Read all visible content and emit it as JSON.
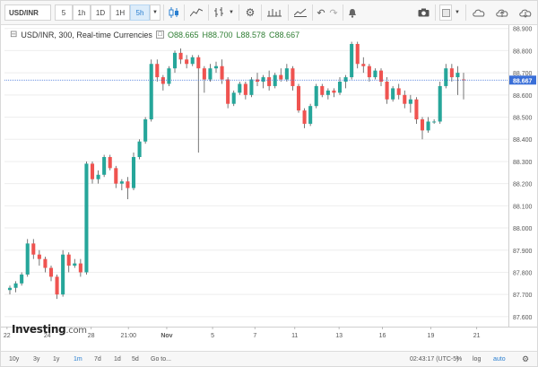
{
  "toolbar": {
    "symbol": "USD/INR",
    "intervals": [
      "5",
      "1h",
      "1D",
      "1H",
      "5h"
    ],
    "active_interval": "5h",
    "icons": [
      "dropdown-icon",
      "candles-icon",
      "line-style-icon",
      "bars-icon",
      "dropdown-icon",
      "settings-icon",
      "scale-icon",
      "compare-icon",
      "undo-icon",
      "redo-icon",
      "alert-icon",
      "camera-icon",
      "color-swatch-icon",
      "dropdown-icon",
      "cloud-icon",
      "cloud-save-icon",
      "cloud-load-icon"
    ]
  },
  "legend": {
    "title": "USD/INR, 300, Real-time Currencies",
    "open": "O88.665",
    "high": "H88.700",
    "low": "L88.578",
    "close": "C88.667"
  },
  "watermark": {
    "brand": "Investing",
    "suffix": ".com"
  },
  "chart_data": {
    "type": "candlestick",
    "current_price": "88.667",
    "y_ticks": [
      "88.900",
      "88.800",
      "88.700",
      "88.600",
      "88.500",
      "88.400",
      "88.300",
      "88.200",
      "88.100",
      "88.000",
      "87.900",
      "87.800",
      "87.700",
      "87.600"
    ],
    "x_ticks": [
      "22",
      "24",
      "28",
      "21:00",
      "Nov",
      "5",
      "7",
      "11",
      "13",
      "16",
      "19",
      "21"
    ],
    "ylim": [
      87.555,
      88.915
    ],
    "colors": {
      "up": "#26a69a",
      "down": "#ef5350",
      "wick": "#555555",
      "price_line": "#3a6fd8"
    },
    "candles": [
      [
        87.72,
        87.74,
        87.7,
        87.73
      ],
      [
        87.73,
        87.76,
        87.71,
        87.75
      ],
      [
        87.75,
        87.8,
        87.74,
        87.79
      ],
      [
        87.79,
        87.95,
        87.78,
        87.93
      ],
      [
        87.93,
        87.95,
        87.86,
        87.88
      ],
      [
        87.88,
        87.9,
        87.83,
        87.86
      ],
      [
        87.86,
        87.87,
        87.8,
        87.82
      ],
      [
        87.82,
        87.83,
        87.76,
        87.78
      ],
      [
        87.78,
        87.79,
        87.68,
        87.7
      ],
      [
        87.7,
        87.9,
        87.69,
        87.88
      ],
      [
        87.88,
        87.89,
        87.8,
        87.83
      ],
      [
        87.83,
        87.86,
        87.82,
        87.84
      ],
      [
        87.84,
        87.86,
        87.78,
        87.8
      ],
      [
        87.8,
        88.3,
        87.79,
        88.29
      ],
      [
        88.29,
        88.3,
        88.2,
        88.22
      ],
      [
        88.22,
        88.26,
        88.2,
        88.24
      ],
      [
        88.24,
        88.33,
        88.23,
        88.32
      ],
      [
        88.32,
        88.33,
        88.26,
        88.27
      ],
      [
        88.27,
        88.28,
        88.18,
        88.2
      ],
      [
        88.2,
        88.22,
        88.17,
        88.21
      ],
      [
        88.21,
        88.23,
        88.13,
        88.18
      ],
      [
        88.18,
        88.34,
        88.17,
        88.32
      ],
      [
        88.32,
        88.4,
        88.31,
        88.39
      ],
      [
        88.39,
        88.5,
        88.38,
        88.49
      ],
      [
        88.49,
        88.76,
        88.48,
        88.74
      ],
      [
        88.74,
        88.76,
        88.66,
        88.68
      ],
      [
        88.68,
        88.69,
        88.62,
        88.65
      ],
      [
        88.65,
        88.73,
        88.64,
        88.72
      ],
      [
        88.72,
        88.8,
        88.7,
        88.79
      ],
      [
        88.79,
        88.81,
        88.74,
        88.76
      ],
      [
        88.76,
        88.78,
        88.72,
        88.74
      ],
      [
        88.74,
        88.78,
        88.73,
        88.77
      ],
      [
        88.77,
        88.78,
        88.34,
        88.72
      ],
      [
        88.72,
        88.73,
        88.61,
        88.67
      ],
      [
        88.67,
        88.74,
        88.66,
        88.72
      ],
      [
        88.72,
        88.75,
        88.7,
        88.73
      ],
      [
        88.73,
        88.76,
        88.65,
        88.67
      ],
      [
        88.67,
        88.68,
        88.54,
        88.56
      ],
      [
        88.56,
        88.62,
        88.55,
        88.61
      ],
      [
        88.61,
        88.66,
        88.6,
        88.65
      ],
      [
        88.65,
        88.66,
        88.58,
        88.6
      ],
      [
        88.6,
        88.68,
        88.59,
        88.67
      ],
      [
        88.67,
        88.7,
        88.64,
        88.66
      ],
      [
        88.66,
        88.69,
        88.63,
        88.68
      ],
      [
        88.68,
        88.71,
        88.62,
        88.64
      ],
      [
        88.64,
        88.7,
        88.63,
        88.69
      ],
      [
        88.69,
        88.72,
        88.66,
        88.67
      ],
      [
        88.67,
        88.74,
        88.66,
        88.72
      ],
      [
        88.72,
        88.73,
        88.62,
        88.64
      ],
      [
        88.64,
        88.65,
        88.52,
        88.53
      ],
      [
        88.53,
        88.54,
        88.45,
        88.47
      ],
      [
        88.47,
        88.56,
        88.46,
        88.55
      ],
      [
        88.55,
        88.65,
        88.54,
        88.64
      ],
      [
        88.64,
        88.65,
        88.59,
        88.6
      ],
      [
        88.6,
        88.63,
        88.58,
        88.62
      ],
      [
        88.62,
        88.63,
        88.59,
        88.61
      ],
      [
        88.61,
        88.68,
        88.6,
        88.66
      ],
      [
        88.66,
        88.69,
        88.63,
        88.68
      ],
      [
        88.68,
        88.84,
        88.67,
        88.83
      ],
      [
        88.83,
        88.84,
        88.72,
        88.74
      ],
      [
        88.74,
        88.77,
        88.7,
        88.73
      ],
      [
        88.73,
        88.74,
        88.66,
        88.68
      ],
      [
        88.68,
        88.72,
        88.67,
        88.71
      ],
      [
        88.71,
        88.72,
        88.64,
        88.66
      ],
      [
        88.66,
        88.68,
        88.56,
        88.58
      ],
      [
        88.58,
        88.64,
        88.57,
        88.63
      ],
      [
        88.63,
        88.65,
        88.58,
        88.6
      ],
      [
        88.6,
        88.62,
        88.54,
        88.56
      ],
      [
        88.56,
        88.6,
        88.52,
        88.58
      ],
      [
        88.58,
        88.59,
        88.47,
        88.49
      ],
      [
        88.49,
        88.5,
        88.4,
        88.44
      ],
      [
        88.44,
        88.5,
        88.43,
        88.48
      ],
      [
        88.48,
        88.49,
        88.47,
        88.48
      ],
      [
        88.48,
        88.66,
        88.47,
        88.64
      ],
      [
        88.64,
        88.74,
        88.63,
        88.72
      ],
      [
        88.72,
        88.74,
        88.66,
        88.68
      ],
      [
        88.68,
        88.73,
        88.6,
        88.7
      ],
      [
        88.67,
        88.7,
        88.58,
        88.667
      ]
    ]
  },
  "bottombar": {
    "ranges": [
      "10y",
      "3y",
      "1y",
      "1m",
      "7d",
      "1d",
      "5d",
      "Go to..."
    ],
    "active_range": "1m",
    "clock": "02:43:17 (UTC-5)",
    "percent": "%",
    "log": "log",
    "auto": "auto"
  }
}
